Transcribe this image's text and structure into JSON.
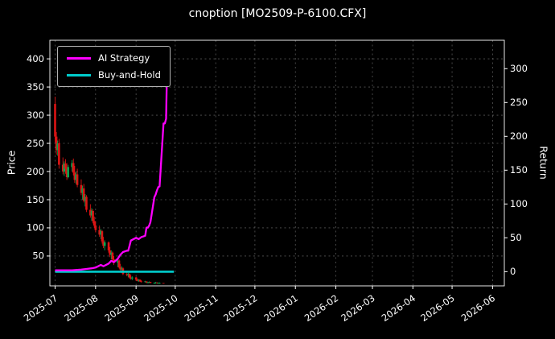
{
  "chart_data": {
    "type": "candlestick",
    "title": "cnoption [MO2509-P-6100.CFX]",
    "left_axis": {
      "label": "Price",
      "ticks": [
        50,
        100,
        150,
        200,
        250,
        300,
        350,
        400
      ],
      "range": [
        -3,
        433
      ]
    },
    "right_axis": {
      "label": "Return",
      "ticks": [
        0,
        50,
        100,
        150,
        200,
        250,
        300
      ],
      "range": [
        -21,
        342
      ]
    },
    "x_axis": {
      "range": [
        "2025-06-27",
        "2026-06-10"
      ],
      "ticks": [
        "2025-07-01",
        "2025-08-01",
        "2025-09-01",
        "2025-10-01",
        "2025-11-01",
        "2025-12-01",
        "2026-01-01",
        "2026-02-01",
        "2026-03-01",
        "2026-04-01",
        "2026-05-01",
        "2026-06-01"
      ],
      "tick_labels": [
        "2025-07",
        "2025-08",
        "2025-09",
        "2025-10",
        "2025-11",
        "2025-12",
        "2026-01",
        "2026-02",
        "2026-03",
        "2026-04",
        "2026-05",
        "2026-06"
      ]
    },
    "legend": [
      {
        "label": "AI Strategy",
        "color": "#ff00ff"
      },
      {
        "label": "Buy-and-Hold",
        "color": "#00cdcd"
      }
    ],
    "colors": {
      "background": "#000000",
      "text": "#ffffff",
      "grid": "#565656",
      "frame": "#ffffff",
      "up": "#00a650",
      "down": "#dc1414",
      "ai_strategy": "#ff00ff",
      "buy_and_hold": "#00cdcd"
    },
    "candles": [
      [
        "2025-07-01",
        320,
        333,
        252,
        262
      ],
      [
        "2025-07-02",
        262,
        270,
        230,
        238
      ],
      [
        "2025-07-03",
        238,
        255,
        228,
        250
      ],
      [
        "2025-07-04",
        250,
        258,
        205,
        212
      ],
      [
        "2025-07-07",
        212,
        225,
        195,
        200
      ],
      [
        "2025-07-08",
        200,
        218,
        192,
        214
      ],
      [
        "2025-07-09",
        214,
        222,
        196,
        205
      ],
      [
        "2025-07-10",
        205,
        215,
        185,
        190
      ],
      [
        "2025-07-11",
        190,
        212,
        188,
        208
      ],
      [
        "2025-07-14",
        208,
        220,
        200,
        215
      ],
      [
        "2025-07-15",
        215,
        223,
        193,
        198
      ],
      [
        "2025-07-16",
        198,
        210,
        180,
        185
      ],
      [
        "2025-07-17",
        185,
        200,
        178,
        195
      ],
      [
        "2025-07-18",
        195,
        205,
        172,
        176
      ],
      [
        "2025-07-21",
        176,
        186,
        158,
        162
      ],
      [
        "2025-07-22",
        162,
        175,
        150,
        170
      ],
      [
        "2025-07-23",
        170,
        178,
        145,
        148
      ],
      [
        "2025-07-24",
        148,
        160,
        138,
        155
      ],
      [
        "2025-07-25",
        155,
        158,
        128,
        132
      ],
      [
        "2025-07-28",
        132,
        142,
        118,
        122
      ],
      [
        "2025-07-29",
        122,
        135,
        112,
        130
      ],
      [
        "2025-07-30",
        130,
        133,
        108,
        112
      ],
      [
        "2025-07-31",
        112,
        120,
        100,
        104
      ],
      [
        "2025-08-01",
        104,
        112,
        92,
        96
      ],
      [
        "2025-08-04",
        96,
        104,
        84,
        88
      ],
      [
        "2025-08-05",
        88,
        98,
        80,
        94
      ],
      [
        "2025-08-06",
        94,
        96,
        72,
        76
      ],
      [
        "2025-08-07",
        76,
        84,
        64,
        68
      ],
      [
        "2025-08-08",
        68,
        78,
        60,
        74
      ],
      [
        "2025-08-11",
        74,
        76,
        56,
        60
      ],
      [
        "2025-08-12",
        60,
        66,
        48,
        52
      ],
      [
        "2025-08-13",
        52,
        60,
        44,
        56
      ],
      [
        "2025-08-14",
        56,
        58,
        40,
        44
      ],
      [
        "2025-08-15",
        44,
        50,
        34,
        38
      ],
      [
        "2025-08-18",
        38,
        45,
        30,
        42
      ],
      [
        "2025-08-19",
        42,
        44,
        28,
        30
      ],
      [
        "2025-08-20",
        30,
        36,
        24,
        26
      ],
      [
        "2025-08-21",
        26,
        32,
        20,
        28
      ],
      [
        "2025-08-22",
        28,
        30,
        16,
        18
      ],
      [
        "2025-08-25",
        18,
        24,
        14,
        16
      ],
      [
        "2025-08-26",
        16,
        20,
        12,
        18
      ],
      [
        "2025-08-27",
        18,
        19,
        10,
        12
      ],
      [
        "2025-08-28",
        12,
        16,
        8,
        10
      ],
      [
        "2025-08-29",
        10,
        14,
        7,
        12
      ],
      [
        "2025-09-01",
        12,
        13,
        6,
        8
      ],
      [
        "2025-09-02",
        8,
        10,
        5,
        6
      ],
      [
        "2025-09-03",
        6,
        9,
        4,
        8
      ],
      [
        "2025-09-04",
        8,
        8,
        4,
        5
      ],
      [
        "2025-09-05",
        5,
        7,
        3,
        4
      ],
      [
        "2025-09-08",
        4,
        6,
        3,
        5
      ],
      [
        "2025-09-09",
        5,
        5,
        2,
        3
      ],
      [
        "2025-09-10",
        3,
        4,
        2,
        3
      ],
      [
        "2025-09-11",
        3,
        5,
        2,
        4
      ],
      [
        "2025-09-12",
        4,
        4,
        2,
        2
      ],
      [
        "2025-09-15",
        2,
        3,
        1,
        2
      ],
      [
        "2025-09-16",
        2,
        4,
        1,
        3
      ],
      [
        "2025-09-17",
        3,
        3,
        1,
        2
      ],
      [
        "2025-09-18",
        2,
        3,
        1,
        2
      ],
      [
        "2025-09-19",
        2,
        3,
        1,
        2
      ],
      [
        "2025-09-22",
        2,
        2,
        1,
        1
      ]
    ],
    "series": [
      {
        "name": "Buy-and-Hold",
        "color": "#00cdcd",
        "axis": "right",
        "points": [
          [
            "2025-07-01",
            0
          ],
          [
            "2025-09-30",
            0
          ]
        ]
      },
      {
        "name": "AI Strategy",
        "color": "#ff00ff",
        "axis": "right",
        "points": [
          [
            "2025-07-01",
            2
          ],
          [
            "2025-07-14",
            2
          ],
          [
            "2025-07-21",
            3
          ],
          [
            "2025-07-25",
            4
          ],
          [
            "2025-07-29",
            5
          ],
          [
            "2025-08-01",
            6
          ],
          [
            "2025-08-05",
            10
          ],
          [
            "2025-08-07",
            8
          ],
          [
            "2025-08-11",
            12
          ],
          [
            "2025-08-13",
            16
          ],
          [
            "2025-08-15",
            14
          ],
          [
            "2025-08-18",
            19
          ],
          [
            "2025-08-20",
            25
          ],
          [
            "2025-08-22",
            29
          ],
          [
            "2025-08-25",
            31
          ],
          [
            "2025-08-26",
            31
          ],
          [
            "2025-08-27",
            38
          ],
          [
            "2025-08-28",
            46
          ],
          [
            "2025-09-01",
            50
          ],
          [
            "2025-09-03",
            48
          ],
          [
            "2025-09-05",
            51
          ],
          [
            "2025-09-08",
            53
          ],
          [
            "2025-09-09",
            65
          ],
          [
            "2025-09-10",
            65
          ],
          [
            "2025-09-11",
            68
          ],
          [
            "2025-09-12",
            73
          ],
          [
            "2025-09-15",
            110
          ],
          [
            "2025-09-16",
            114
          ],
          [
            "2025-09-17",
            120
          ],
          [
            "2025-09-18",
            125
          ],
          [
            "2025-09-19",
            126
          ],
          [
            "2025-09-22",
            219
          ],
          [
            "2025-09-23",
            219
          ],
          [
            "2025-09-24",
            226
          ],
          [
            "2025-09-25",
            330
          ]
        ]
      }
    ]
  }
}
